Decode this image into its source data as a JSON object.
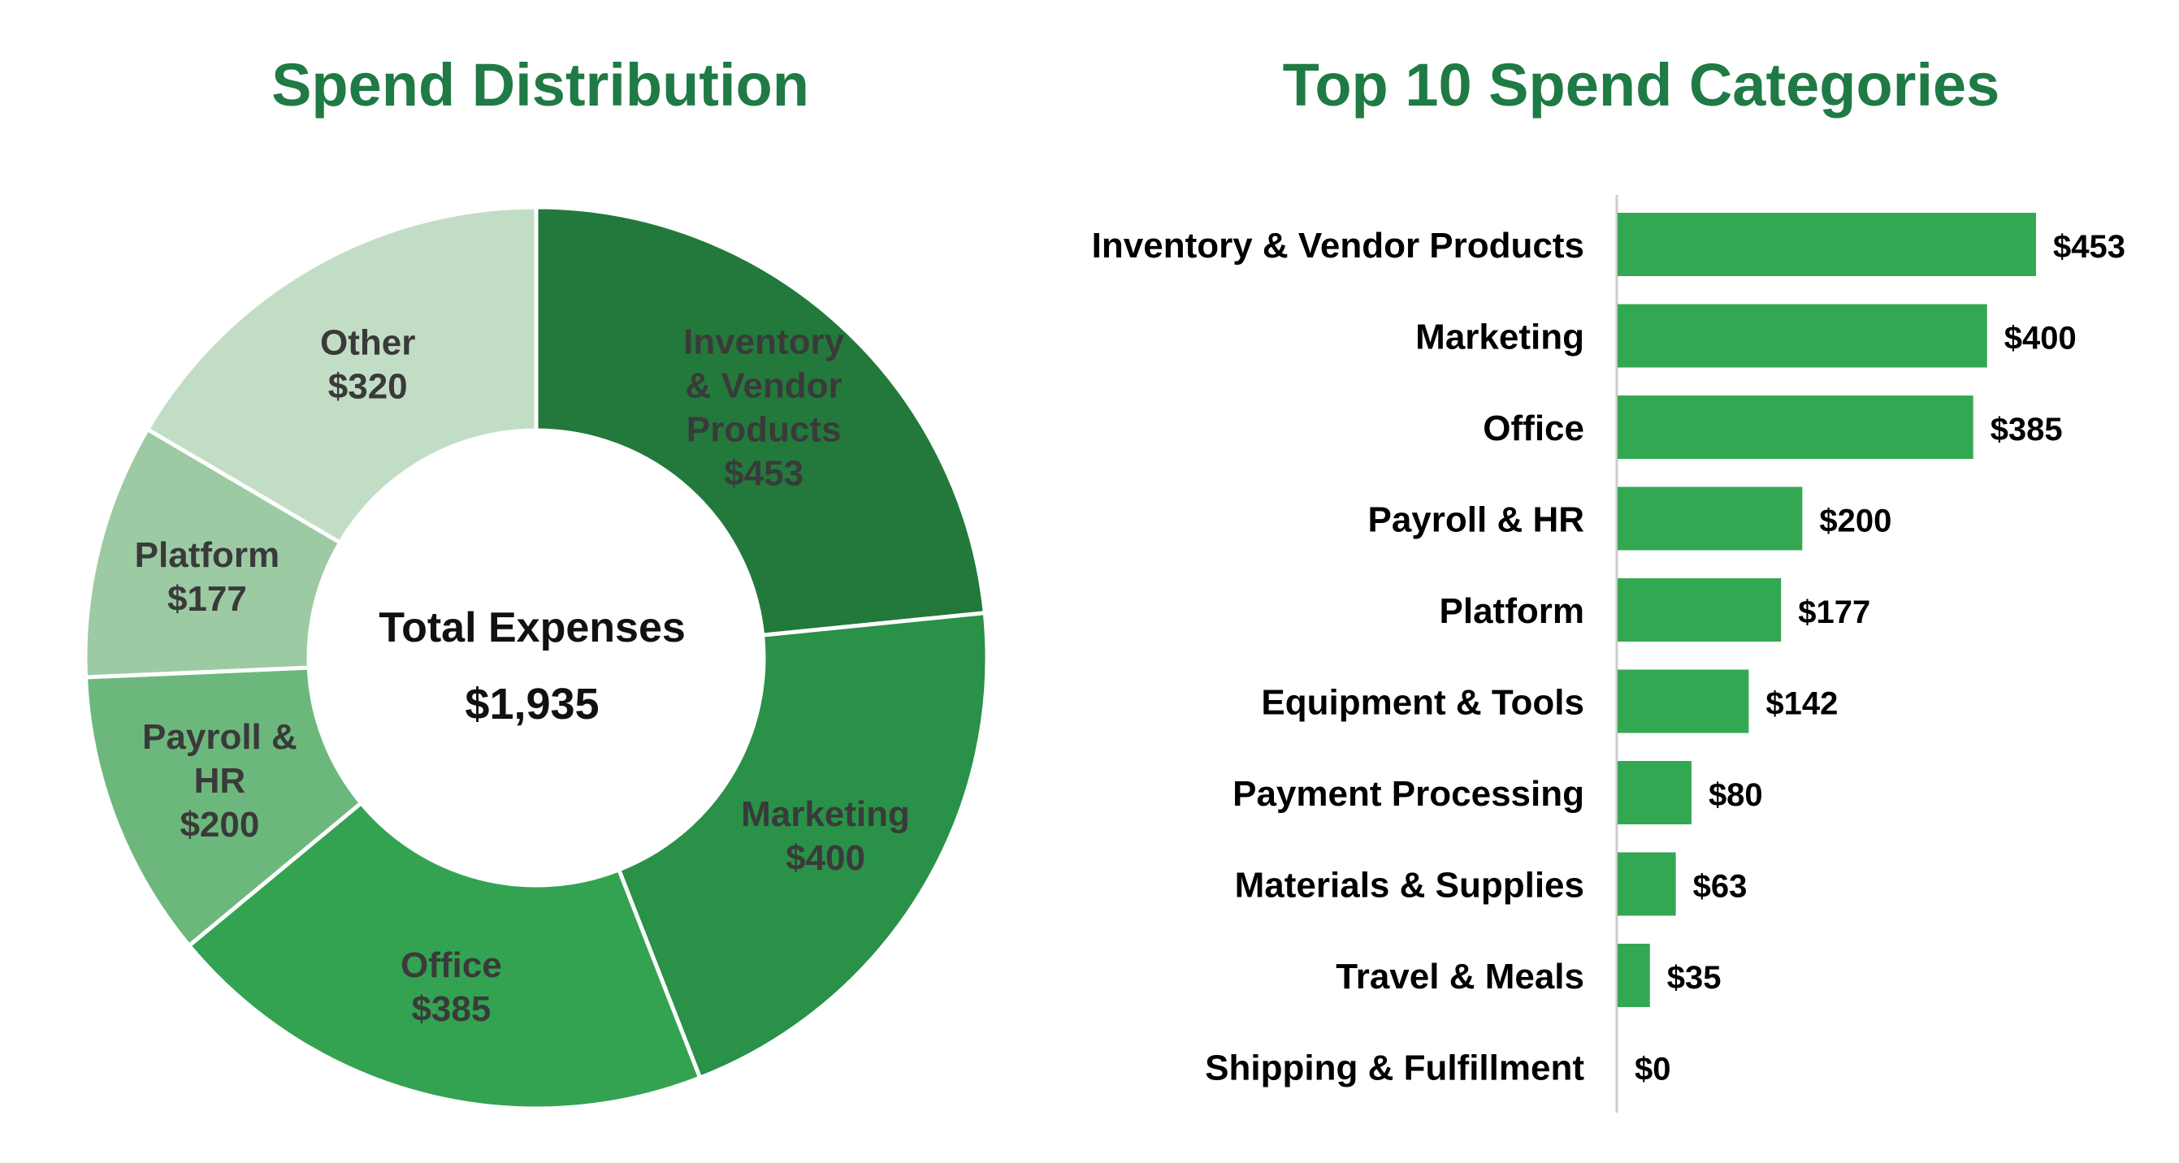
{
  "chart_data": [
    {
      "type": "pie",
      "title": "Spend Distribution",
      "center_label": "Total Expenses",
      "center_value": "$1,935",
      "slices": [
        {
          "label_lines": [
            "Inventory",
            "& Vendor",
            "Products"
          ],
          "value": 453,
          "value_label": "$453",
          "color": "#22793b"
        },
        {
          "label_lines": [
            "Marketing"
          ],
          "value": 400,
          "value_label": "$400",
          "color": "#2a9148"
        },
        {
          "label_lines": [
            "Office"
          ],
          "value": 385,
          "value_label": "$385",
          "color": "#33a352"
        },
        {
          "label_lines": [
            "Payroll &",
            "HR"
          ],
          "value": 200,
          "value_label": "$200",
          "color": "#6cb87c"
        },
        {
          "label_lines": [
            "Platform"
          ],
          "value": 177,
          "value_label": "$177",
          "color": "#9ccaa3"
        },
        {
          "label_lines": [
            "Other"
          ],
          "value": 320,
          "value_label": "$320",
          "color": "#c2ddc5"
        }
      ]
    },
    {
      "type": "bar",
      "orientation": "horizontal",
      "title": "Top 10 Spend Categories",
      "bar_color": "#33a852",
      "categories": [
        "Inventory & Vendor Products",
        "Marketing",
        "Office",
        "Payroll & HR",
        "Platform",
        "Equipment & Tools",
        "Payment Processing",
        "Materials & Supplies",
        "Travel & Meals",
        "Shipping & Fulfillment"
      ],
      "values": [
        453,
        400,
        385,
        200,
        177,
        142,
        80,
        63,
        35,
        0
      ],
      "value_labels": [
        "$453",
        "$400",
        "$385",
        "$200",
        "$177",
        "$142",
        "$80",
        "$63",
        "$35",
        "$0"
      ]
    }
  ]
}
